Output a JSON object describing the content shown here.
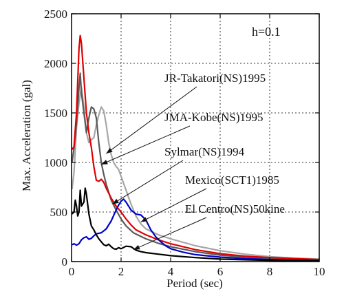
{
  "chart_data": {
    "type": "line",
    "annotation_damping": "h=0.1",
    "xlabel": "Period (sec)",
    "ylabel": "Max. Acceleration (gal)",
    "xlim": [
      0,
      10
    ],
    "ylim": [
      0,
      2500
    ],
    "x_ticks": [
      0,
      2,
      4,
      6,
      8,
      10
    ],
    "y_ticks": [
      0,
      500,
      1000,
      1500,
      2000,
      2500
    ],
    "grid": "dotted",
    "series": [
      {
        "name": "JR-Takatori(NS)1995",
        "color": "#a6a6a6",
        "points": [
          [
            0.02,
            730
          ],
          [
            0.1,
            900
          ],
          [
            0.2,
            1350
          ],
          [
            0.3,
            1600
          ],
          [
            0.4,
            1760
          ],
          [
            0.5,
            1550
          ],
          [
            0.6,
            1300
          ],
          [
            0.7,
            1200
          ],
          [
            0.8,
            1230
          ],
          [
            0.9,
            1250
          ],
          [
            1.0,
            1380
          ],
          [
            1.1,
            1480
          ],
          [
            1.2,
            1560
          ],
          [
            1.3,
            1520
          ],
          [
            1.4,
            1380
          ],
          [
            1.5,
            1200
          ],
          [
            1.6,
            1080
          ],
          [
            1.7,
            1000
          ],
          [
            1.8,
            960
          ],
          [
            1.9,
            930
          ],
          [
            2.0,
            860
          ],
          [
            2.2,
            720
          ],
          [
            2.4,
            580
          ],
          [
            2.6,
            460
          ],
          [
            2.8,
            380
          ],
          [
            3.0,
            330
          ],
          [
            3.5,
            270
          ],
          [
            4.0,
            230
          ],
          [
            5.0,
            160
          ],
          [
            6.0,
            110
          ],
          [
            7.0,
            75
          ],
          [
            8.0,
            50
          ],
          [
            9.0,
            35
          ],
          [
            10.0,
            25
          ]
        ]
      },
      {
        "name": "JMA-Kobe(NS)1995",
        "color": "#5a5a5a",
        "points": [
          [
            0.02,
            1000
          ],
          [
            0.1,
            1150
          ],
          [
            0.2,
            1400
          ],
          [
            0.3,
            1750
          ],
          [
            0.35,
            1900
          ],
          [
            0.4,
            1700
          ],
          [
            0.5,
            1500
          ],
          [
            0.6,
            1300
          ],
          [
            0.7,
            1450
          ],
          [
            0.8,
            1560
          ],
          [
            0.9,
            1540
          ],
          [
            1.0,
            1450
          ],
          [
            1.1,
            1200
          ],
          [
            1.2,
            1000
          ],
          [
            1.3,
            880
          ],
          [
            1.4,
            780
          ],
          [
            1.5,
            700
          ],
          [
            1.6,
            620
          ],
          [
            1.8,
            520
          ],
          [
            2.0,
            430
          ],
          [
            2.2,
            360
          ],
          [
            2.5,
            290
          ],
          [
            3.0,
            230
          ],
          [
            3.5,
            185
          ],
          [
            4.0,
            150
          ],
          [
            5.0,
            100
          ],
          [
            6.0,
            65
          ],
          [
            7.0,
            45
          ],
          [
            8.0,
            30
          ],
          [
            10.0,
            15
          ]
        ]
      },
      {
        "name": "Sylmar(NS)1994",
        "color": "#e00000",
        "points": [
          [
            0.02,
            1130
          ],
          [
            0.1,
            1160
          ],
          [
            0.2,
            1500
          ],
          [
            0.3,
            2150
          ],
          [
            0.35,
            2280
          ],
          [
            0.4,
            2200
          ],
          [
            0.5,
            1850
          ],
          [
            0.6,
            1500
          ],
          [
            0.7,
            1300
          ],
          [
            0.8,
            1150
          ],
          [
            0.9,
            960
          ],
          [
            1.0,
            820
          ],
          [
            1.1,
            810
          ],
          [
            1.2,
            830
          ],
          [
            1.3,
            800
          ],
          [
            1.4,
            740
          ],
          [
            1.6,
            640
          ],
          [
            1.8,
            560
          ],
          [
            2.0,
            500
          ],
          [
            2.2,
            430
          ],
          [
            2.4,
            370
          ],
          [
            2.6,
            320
          ],
          [
            3.0,
            270
          ],
          [
            3.5,
            220
          ],
          [
            4.0,
            180
          ],
          [
            5.0,
            120
          ],
          [
            6.0,
            80
          ],
          [
            7.0,
            55
          ],
          [
            8.0,
            40
          ],
          [
            10.0,
            20
          ]
        ]
      },
      {
        "name": "Mexico(SCT1)1985",
        "color": "#0000c8",
        "points": [
          [
            0.02,
            170
          ],
          [
            0.1,
            180
          ],
          [
            0.2,
            165
          ],
          [
            0.3,
            180
          ],
          [
            0.4,
            220
          ],
          [
            0.5,
            240
          ],
          [
            0.6,
            250
          ],
          [
            0.7,
            225
          ],
          [
            0.8,
            235
          ],
          [
            0.9,
            260
          ],
          [
            1.0,
            280
          ],
          [
            1.2,
            290
          ],
          [
            1.4,
            330
          ],
          [
            1.6,
            410
          ],
          [
            1.8,
            520
          ],
          [
            1.9,
            570
          ],
          [
            2.0,
            610
          ],
          [
            2.1,
            630
          ],
          [
            2.2,
            600
          ],
          [
            2.4,
            520
          ],
          [
            2.6,
            480
          ],
          [
            2.8,
            470
          ],
          [
            3.0,
            420
          ],
          [
            3.2,
            320
          ],
          [
            3.4,
            250
          ],
          [
            3.6,
            200
          ],
          [
            3.8,
            160
          ],
          [
            4.0,
            130
          ],
          [
            4.5,
            95
          ],
          [
            5.0,
            70
          ],
          [
            6.0,
            45
          ],
          [
            7.0,
            30
          ],
          [
            8.0,
            20
          ],
          [
            10.0,
            10
          ]
        ]
      },
      {
        "name": "El Centro(NS)50kine",
        "color": "#000000",
        "points": [
          [
            0.02,
            480
          ],
          [
            0.1,
            500
          ],
          [
            0.15,
            620
          ],
          [
            0.2,
            560
          ],
          [
            0.25,
            460
          ],
          [
            0.3,
            500
          ],
          [
            0.35,
            720
          ],
          [
            0.4,
            560
          ],
          [
            0.5,
            600
          ],
          [
            0.55,
            740
          ],
          [
            0.6,
            680
          ],
          [
            0.7,
            480
          ],
          [
            0.8,
            360
          ],
          [
            0.9,
            320
          ],
          [
            1.0,
            270
          ],
          [
            1.1,
            230
          ],
          [
            1.2,
            200
          ],
          [
            1.3,
            170
          ],
          [
            1.4,
            160
          ],
          [
            1.5,
            175
          ],
          [
            1.6,
            150
          ],
          [
            1.7,
            130
          ],
          [
            1.8,
            125
          ],
          [
            1.9,
            140
          ],
          [
            2.0,
            130
          ],
          [
            2.2,
            155
          ],
          [
            2.4,
            150
          ],
          [
            2.6,
            115
          ],
          [
            2.8,
            100
          ],
          [
            3.0,
            90
          ],
          [
            3.5,
            75
          ],
          [
            4.0,
            60
          ],
          [
            5.0,
            40
          ],
          [
            6.0,
            25
          ],
          [
            7.0,
            18
          ],
          [
            8.0,
            12
          ],
          [
            10.0,
            8
          ]
        ]
      }
    ],
    "annotations": [
      {
        "text": "JR-Takatori(NS)1995",
        "series": "JR-Takatori(NS)1995",
        "target": [
          1.4,
          1090
        ]
      },
      {
        "text": "JMA-Kobe(NS)1995",
        "series": "JMA-Kobe(NS)1995",
        "target": [
          1.2,
          980
        ]
      },
      {
        "text": "Sylmar(NS)1994",
        "series": "Sylmar(NS)1994",
        "target": [
          1.65,
          580
        ]
      },
      {
        "text": "Mexico(SCT1)1985",
        "series": "Mexico(SCT1)1985",
        "target": [
          2.8,
          400
        ]
      },
      {
        "text": "El Centro(NS)50kine",
        "series": "El Centro(NS)50kine",
        "target": [
          2.5,
          120
        ]
      }
    ]
  }
}
